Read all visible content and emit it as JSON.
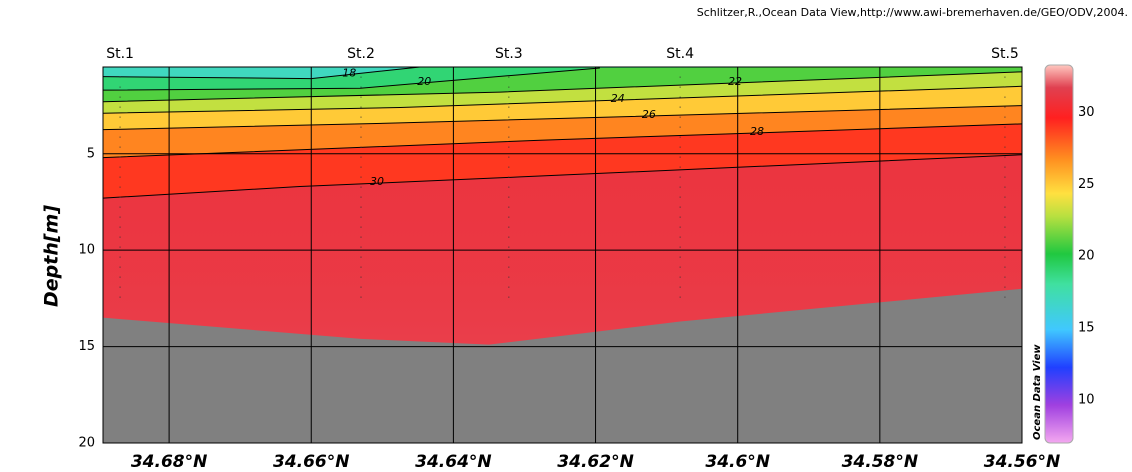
{
  "chart_data": {
    "type": "section",
    "credit": "Schlitzer,R.,Ocean Data View,http://www.awi-bremerhaven.de/GEO/ODV,2004.",
    "watermark": "Ocean Data View",
    "ylabel": "Depth[m]",
    "xlim": [
      34.6893,
      34.56
    ],
    "xticks": [
      {
        "value": 34.68,
        "label": "34.68°N"
      },
      {
        "value": 34.66,
        "label": "34.66°N"
      },
      {
        "value": 34.64,
        "label": "34.64°N"
      },
      {
        "value": 34.62,
        "label": "34.62°N"
      },
      {
        "value": 34.6,
        "label": "34.6°N"
      },
      {
        "value": 34.58,
        "label": "34.58°N"
      },
      {
        "value": 34.56,
        "label": "34.56°N"
      }
    ],
    "ylim": [
      0.5,
      20
    ],
    "yticks": [
      5,
      10,
      15,
      20
    ],
    "grid": true,
    "stations": [
      {
        "name": "St.1",
        "lat": 34.6869
      },
      {
        "name": "St.2",
        "lat": 34.653
      },
      {
        "name": "St.3",
        "lat": 34.6322
      },
      {
        "name": "St.4",
        "lat": 34.6081
      },
      {
        "name": "St.5",
        "lat": 34.5624
      }
    ],
    "contours": [
      {
        "level": 18,
        "lat": [
          34.6893,
          34.66,
          34.6447
        ],
        "depth": [
          1.0,
          1.1,
          0.5
        ]
      },
      {
        "level": 20,
        "lat": [
          34.6893,
          34.6531,
          34.6306,
          34.6194
        ],
        "depth": [
          1.7,
          1.6,
          0.9,
          0.55
        ]
      },
      {
        "level": 22,
        "lat": [
          34.6893,
          34.6334,
          34.56
        ],
        "depth": [
          2.3,
          1.8,
          0.75
        ]
      },
      {
        "level": 24,
        "lat": [
          34.6893,
          34.6475,
          34.56
        ],
        "depth": [
          2.9,
          2.6,
          1.5
        ]
      },
      {
        "level": 26,
        "lat": [
          34.6893,
          34.6475,
          34.56
        ],
        "depth": [
          3.75,
          3.4,
          2.5
        ]
      },
      {
        "level": 28,
        "lat": [
          34.6893,
          34.6278,
          34.56
        ],
        "depth": [
          5.2,
          4.3,
          3.45
        ]
      },
      {
        "level": 30,
        "lat": [
          34.6893,
          34.6616,
          34.6306,
          34.56
        ],
        "depth": [
          7.3,
          6.7,
          6.2,
          5.05
        ]
      }
    ],
    "bottom": {
      "lat": [
        34.6893,
        34.653,
        34.635,
        34.6081,
        34.56
      ],
      "depth": [
        13.5,
        14.6,
        14.9,
        13.7,
        12.0
      ]
    },
    "colorbar": {
      "clim": [
        7,
        33.3
      ],
      "ticks": [
        10,
        15,
        20,
        25,
        30
      ]
    }
  }
}
